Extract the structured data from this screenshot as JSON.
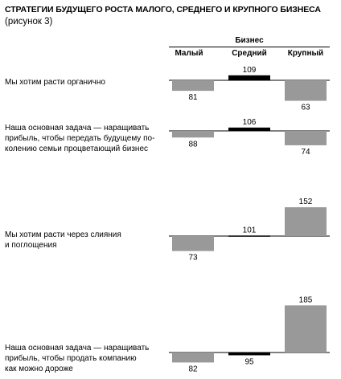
{
  "title": {
    "main": "Стратегии будущего роста малого, среднего и крупного бизнеса",
    "sub": "(рисунок 3)"
  },
  "header": {
    "group": "Бизнес",
    "columns": [
      "Малый",
      "Средний",
      "Крупный"
    ]
  },
  "colors": {
    "small": "#999999",
    "medium": "#000000",
    "large": "#999999",
    "axis": "#000000"
  },
  "chart_data": {
    "type": "bar",
    "baseline": 100,
    "categories": [
      "Мы хотим расти органично",
      "Наша основная задача — наращивать прибыль, чтобы передать будущему по-колению семьи процветающий бизнес",
      "Мы хотим расти через слияния и поглощения",
      "Наша основная задача — наращивать прибыль, чтобы продать компанию как можно дороже"
    ],
    "label_lines": [
      [
        "Мы хотим расти органично"
      ],
      [
        "Наша основная задача — наращивать",
        "прибыль, чтобы передать будущему по-",
        "колению семьи процветающий бизнес"
      ],
      [
        "Мы хотим расти через слияния",
        "и поглощения"
      ],
      [
        "Наша основная задача — наращивать",
        "прибыль, чтобы продать компанию",
        "как можно дороже"
      ]
    ],
    "series": [
      {
        "name": "Малый",
        "values": [
          81,
          88,
          73,
          82
        ]
      },
      {
        "name": "Средний",
        "values": [
          109,
          106,
          101,
          95
        ]
      },
      {
        "name": "Крупный",
        "values": [
          63,
          74,
          152,
          185
        ]
      }
    ]
  }
}
